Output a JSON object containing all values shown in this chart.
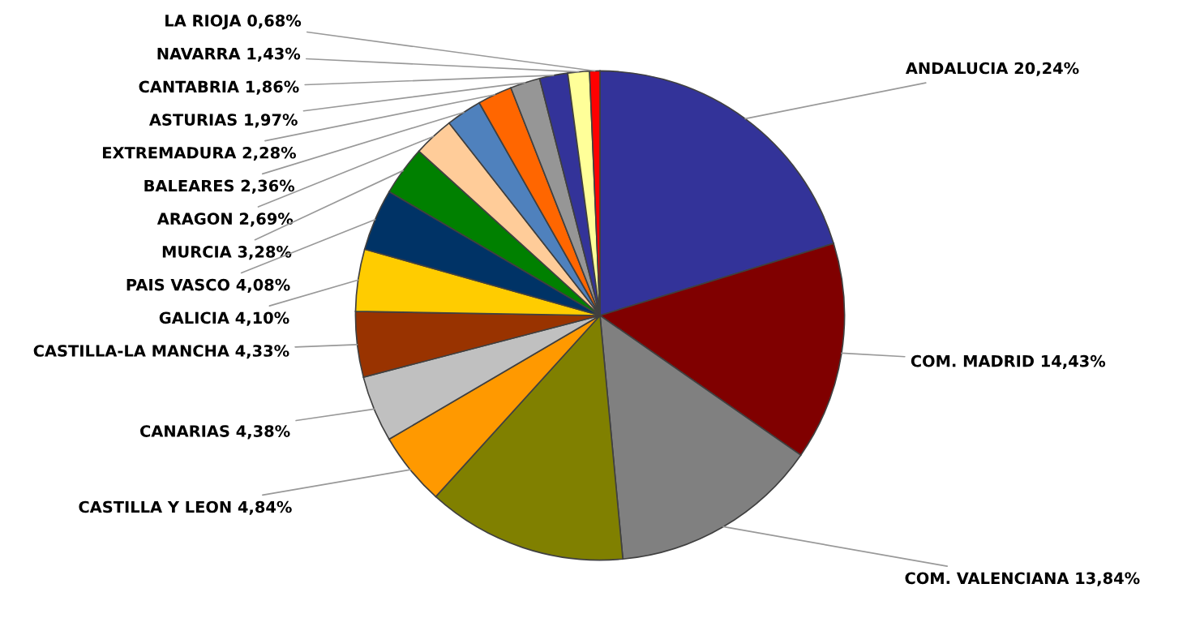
{
  "chart_data": {
    "type": "pie",
    "categories": [
      "ANDALUCIA",
      "COM. MADRID",
      "COM. VALENCIANA",
      null,
      "CASTILLA Y LEON",
      "CANARIAS",
      "CASTILLA-LA MANCHA",
      "GALICIA",
      "PAIS VASCO",
      "MURCIA",
      "ARAGON",
      "BALEARES",
      "EXTREMADURA",
      "ASTURIAS",
      "CANTABRIA",
      "NAVARRA",
      "LA RIOJA"
    ],
    "values": [
      20.24,
      14.43,
      13.84,
      13.21,
      4.84,
      4.38,
      4.33,
      4.1,
      4.08,
      3.28,
      2.69,
      2.36,
      2.28,
      1.97,
      1.86,
      1.43,
      0.68
    ],
    "value_labels": [
      "20,24%",
      "14,43%",
      "13,84%",
      null,
      "4,84%",
      "4,38%",
      "4,33%",
      "4,10%",
      "4,08%",
      "3,28%",
      "2,69%",
      "2,36%",
      "2,28%",
      "1,97%",
      "1,86%",
      "1,43%",
      "0,68%"
    ],
    "colors": [
      "#333399",
      "#800000",
      "#808080",
      "#808000",
      "#ff9900",
      "#c0c0c0",
      "#993300",
      "#ffcc00",
      "#003366",
      "#008000",
      "#ffcc99",
      "#4f81bd",
      "#ff6600",
      "#969696",
      "#333399",
      "#ffff99",
      "#ff0000"
    ]
  }
}
